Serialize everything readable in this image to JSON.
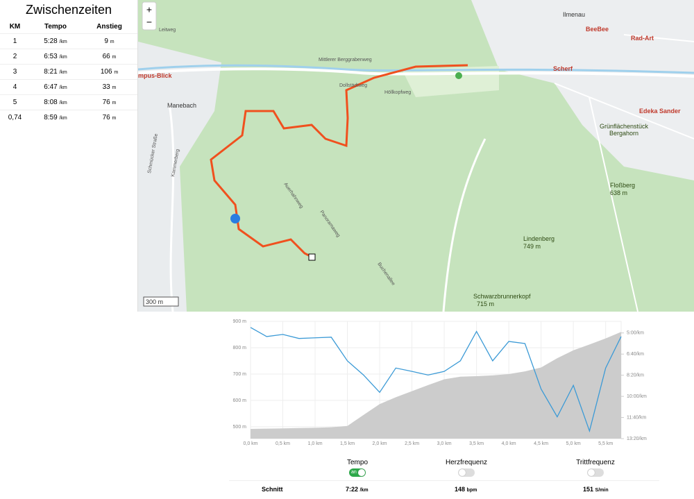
{
  "splits": {
    "title": "Zwischenzeiten",
    "headers": [
      "KM",
      "Tempo",
      "Anstieg"
    ],
    "rows": [
      {
        "km": "1",
        "tempo": "5:28",
        "tempo_unit": "/km",
        "climb": "9",
        "climb_unit": "m"
      },
      {
        "km": "2",
        "tempo": "6:53",
        "tempo_unit": "/km",
        "climb": "66",
        "climb_unit": "m"
      },
      {
        "km": "3",
        "tempo": "8:21",
        "tempo_unit": "/km",
        "climb": "106",
        "climb_unit": "m"
      },
      {
        "km": "4",
        "tempo": "6:47",
        "tempo_unit": "/km",
        "climb": "33",
        "climb_unit": "m"
      },
      {
        "km": "5",
        "tempo": "8:08",
        "tempo_unit": "/km",
        "climb": "76",
        "climb_unit": "m"
      },
      {
        "km": "0,74",
        "tempo": "8:59",
        "tempo_unit": "/km",
        "climb": "76",
        "climb_unit": "m"
      }
    ]
  },
  "map": {
    "zoom_in": "+",
    "zoom_out": "−",
    "scale": "300 m",
    "places": [
      "Ilmenau",
      "BeeBee",
      "Rad-Art",
      "Scherf",
      "Edeka Sander",
      "Grünflächenstück",
      "Bergahorn",
      "Floßberg",
      "638 m",
      "Lindenberg",
      "749 m",
      "Schwarzbrunnerkopf",
      "715 m",
      "Manebach",
      "mpus-Blick",
      "Mittlerer Berggrabenweg",
      "Dollstädtweg",
      "Höllkopfweg",
      "Auerhahnweg",
      "Panoramaweg",
      "Leitweg",
      "Kammerberg",
      "Schmücker Straße",
      "Buchenallee"
    ]
  },
  "chart_data": {
    "type": "line",
    "x": [
      0,
      0.25,
      0.5,
      0.75,
      1,
      1.25,
      1.5,
      1.75,
      2,
      2.25,
      2.5,
      2.75,
      3,
      3.25,
      3.5,
      3.75,
      4,
      4.25,
      4.5,
      4.75,
      5,
      5.25,
      5.5,
      5.74
    ],
    "series": [
      {
        "name": "Höhe",
        "color": "#cccccc",
        "values": [
          492,
          493,
          494,
          495,
          496,
          498,
          503,
          545,
          586,
          612,
          635,
          658,
          680,
          690,
          692,
          695,
          700,
          710,
          725,
          760,
          790,
          812,
          835,
          860
        ]
      },
      {
        "name": "Tempo",
        "color": "#3b9ad6",
        "axis": "y2",
        "values": [
          274,
          317,
          307,
          326,
          323,
          320,
          432,
          499,
          581,
          466,
          482,
          499,
          482,
          432,
          293,
          432,
          340,
          350,
          565,
          697,
          548,
          764,
          466,
          317
        ]
      }
    ],
    "xlim": [
      0,
      5.74
    ],
    "xticks": [
      {
        "value": 0,
        "label": "0,0 km"
      },
      {
        "value": 0.5,
        "label": "0,5 km"
      },
      {
        "value": 1,
        "label": "1,0 km"
      },
      {
        "value": 1.5,
        "label": "1,5 km"
      },
      {
        "value": 2,
        "label": "2,0 km"
      },
      {
        "value": 2.5,
        "label": "2,5 km"
      },
      {
        "value": 3,
        "label": "3,0 km"
      },
      {
        "value": 3.5,
        "label": "3,5 km"
      },
      {
        "value": 4,
        "label": "4,0 km"
      },
      {
        "value": 4.5,
        "label": "4,5 km"
      },
      {
        "value": 5,
        "label": "5,0 km"
      },
      {
        "value": 5.5,
        "label": "5,5 km"
      }
    ],
    "ylim": [
      455,
      900
    ],
    "yticks": [
      {
        "value": 500,
        "label": "500 m"
      },
      {
        "value": 600,
        "label": "600 m"
      },
      {
        "value": 700,
        "label": "700 m"
      },
      {
        "value": 800,
        "label": "800 m"
      },
      {
        "value": 900,
        "label": "900 m"
      }
    ],
    "y2lim": [
      800,
      245
    ],
    "y2ticks": [
      {
        "value": 300,
        "label": "5:00/km"
      },
      {
        "value": 400,
        "label": "6:40/km"
      },
      {
        "value": 500,
        "label": "8:20/km"
      },
      {
        "value": 600,
        "label": "10:00/km"
      },
      {
        "value": 700,
        "label": "11:40/km"
      },
      {
        "value": 800,
        "label": "13:20/km"
      }
    ],
    "grid": true
  },
  "controls": {
    "toggles": [
      {
        "label": "Tempo",
        "state": "an"
      },
      {
        "label": "Herzfrequenz"
      },
      {
        "label": "Trittfrequenz"
      }
    ],
    "summary": {
      "label": "Schnitt",
      "tempo": "7:22",
      "tempo_unit": "/km",
      "hr": "148",
      "hr_unit": "bpm",
      "cadence": "151",
      "cadence_unit": "S/min"
    }
  }
}
